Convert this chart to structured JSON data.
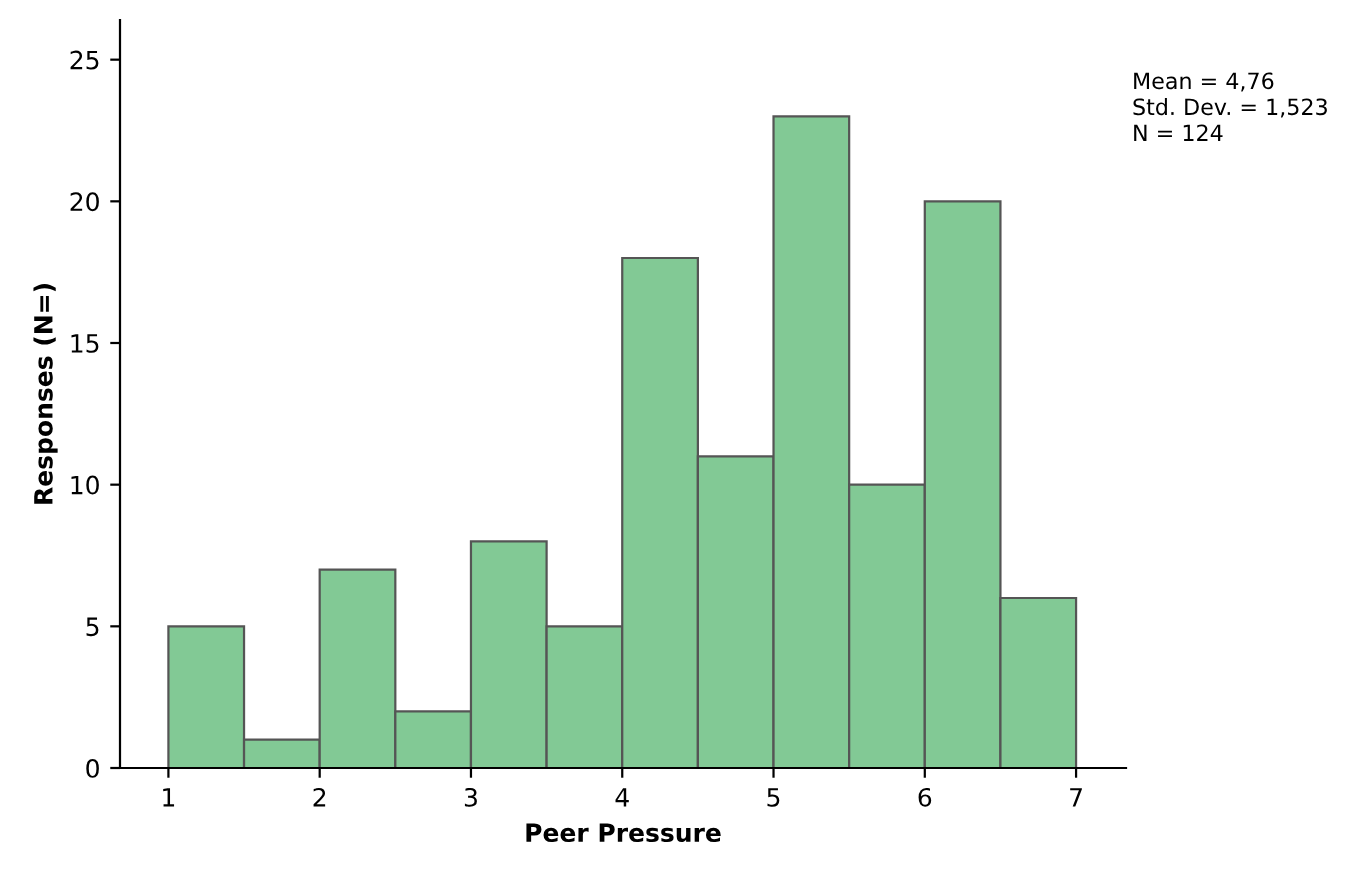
{
  "chart_data": {
    "type": "histogram",
    "xlabel": "Peer Pressure",
    "ylabel": "Responses (N=)",
    "bins": [
      1,
      1.5,
      2,
      2.5,
      3,
      3.5,
      4,
      4.5,
      5,
      5.5,
      6,
      6.5,
      7
    ],
    "values": [
      5,
      1,
      7,
      2,
      8,
      5,
      18,
      11,
      23,
      10,
      20,
      6
    ],
    "color": "#82c995",
    "xlim": [
      0.68,
      7.33
    ],
    "xticks": [
      1,
      2,
      3,
      4,
      5,
      6,
      7
    ],
    "ylim": [
      0,
      26.4
    ],
    "yticks": [
      0,
      5,
      10,
      15,
      20,
      25
    ],
    "grid": false,
    "annotations": [
      "Mean = 4,76",
      "Std. Dev. = 1,523",
      "N = 124"
    ]
  }
}
